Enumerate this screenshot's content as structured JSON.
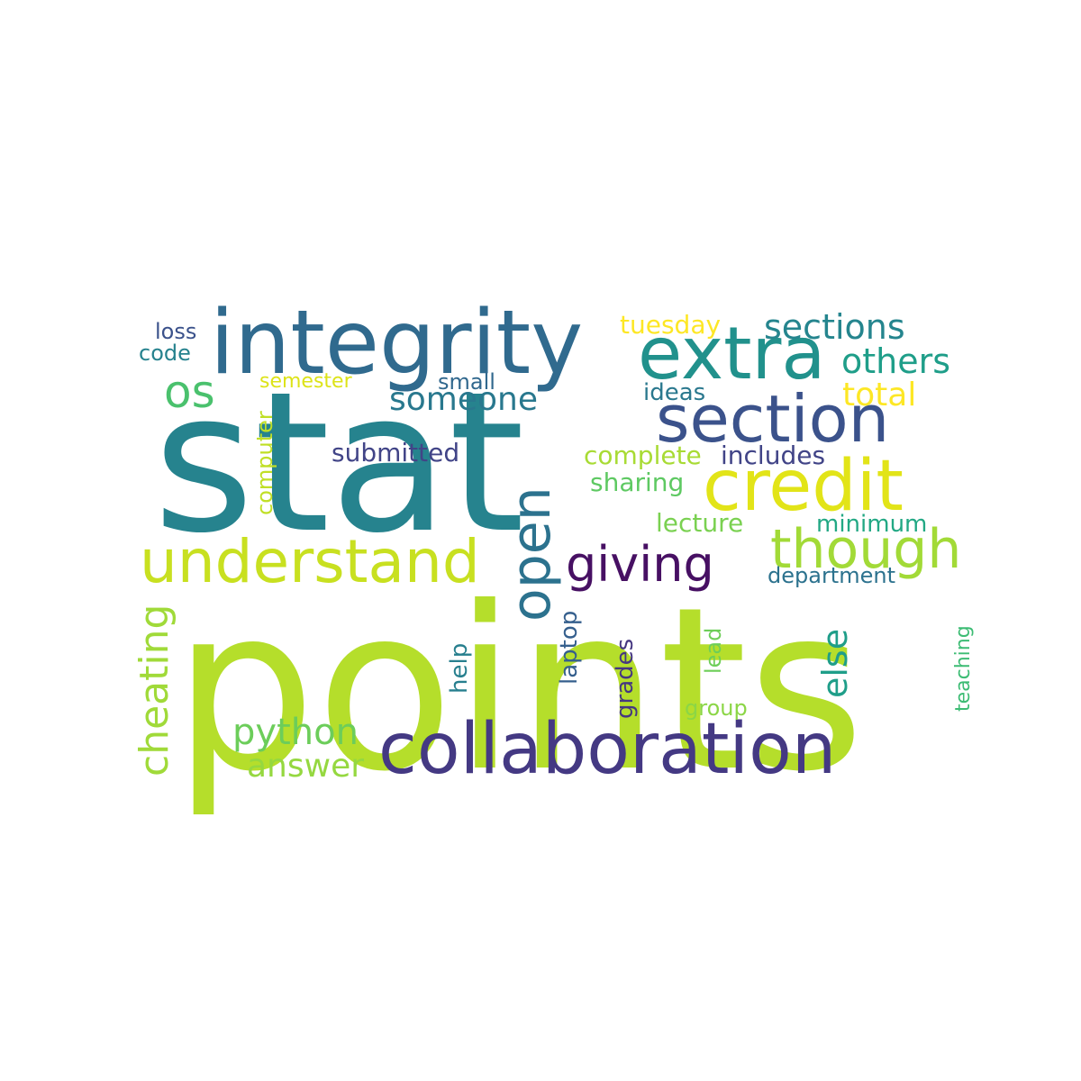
{
  "words": [
    {
      "text": "stat",
      "color": "#26838e"
    },
    {
      "text": "points",
      "color": "#b5de2b"
    },
    {
      "text": "integrity",
      "color": "#306a8e"
    },
    {
      "text": "extra",
      "color": "#21918c"
    },
    {
      "text": "section",
      "color": "#3b528b"
    },
    {
      "text": "credit",
      "color": "#e2e418"
    },
    {
      "text": "collaboration",
      "color": "#443983"
    },
    {
      "text": "understand",
      "color": "#c8e020"
    },
    {
      "text": "though",
      "color": "#a2da37"
    },
    {
      "text": "giving",
      "color": "#471063"
    },
    {
      "text": "open",
      "color": "#2c728e"
    },
    {
      "text": "sections",
      "color": "#25858e"
    },
    {
      "text": "others",
      "color": "#1f9e89"
    },
    {
      "text": "os",
      "color": "#4ac16d"
    },
    {
      "text": "someone",
      "color": "#29788e"
    },
    {
      "text": "total",
      "color": "#fde725"
    },
    {
      "text": "tuesday",
      "color": "#fde725"
    },
    {
      "text": "submitted",
      "color": "#414487"
    },
    {
      "text": "complete",
      "color": "#a8db34"
    },
    {
      "text": "includes",
      "color": "#414487"
    },
    {
      "text": "sharing",
      "color": "#5ec962"
    },
    {
      "text": "ideas",
      "color": "#2a788e"
    },
    {
      "text": "lecture",
      "color": "#7ad151"
    },
    {
      "text": "minimum",
      "color": "#22a884"
    },
    {
      "text": "department",
      "color": "#2c728e"
    },
    {
      "text": "python",
      "color": "#6ccd5a"
    },
    {
      "text": "answer",
      "color": "#95d840"
    },
    {
      "text": "cheating",
      "color": "#a0da39"
    },
    {
      "text": "else",
      "color": "#1f9e89"
    },
    {
      "text": "loss",
      "color": "#3b528b"
    },
    {
      "text": "code",
      "color": "#26828e"
    },
    {
      "text": "small",
      "color": "#31688e"
    },
    {
      "text": "semester",
      "color": "#dde318"
    },
    {
      "text": "computer",
      "color": "#c0df25"
    },
    {
      "text": "help",
      "color": "#277f8e"
    },
    {
      "text": "laptop",
      "color": "#355f8d"
    },
    {
      "text": "grades",
      "color": "#453781"
    },
    {
      "text": "lead",
      "color": "#6ece58"
    },
    {
      "text": "group",
      "color": "#8bd646"
    },
    {
      "text": "teaching",
      "color": "#3dbc74"
    }
  ]
}
